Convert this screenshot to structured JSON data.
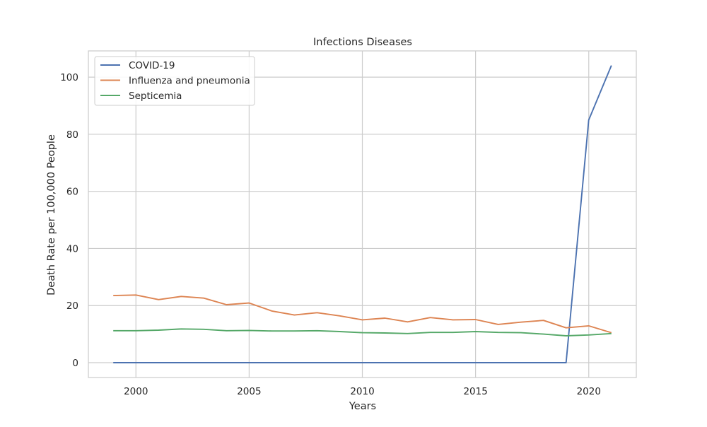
{
  "chart_data": {
    "type": "line",
    "title": "Infections Diseases",
    "xlabel": "Years",
    "ylabel": "Death Rate per 100,000 People",
    "xlim": [
      1997.9,
      2022.1
    ],
    "ylim": [
      -5.2,
      109.2
    ],
    "xticks": [
      2000,
      2005,
      2010,
      2015,
      2020
    ],
    "yticks": [
      0,
      20,
      40,
      60,
      80,
      100
    ],
    "grid": true,
    "legend_position": "top-left",
    "x": [
      1999,
      2000,
      2001,
      2002,
      2003,
      2004,
      2005,
      2006,
      2007,
      2008,
      2009,
      2010,
      2011,
      2012,
      2013,
      2014,
      2015,
      2016,
      2017,
      2018,
      2019,
      2020,
      2021
    ],
    "series": [
      {
        "name": "COVID-19",
        "color": "#4c72b0",
        "values": [
          0,
          0,
          0,
          0,
          0,
          0,
          0,
          0,
          0,
          0,
          0,
          0,
          0,
          0,
          0,
          0,
          0,
          0,
          0,
          0,
          0,
          85.0,
          104.1
        ]
      },
      {
        "name": "Influenza and pneumonia",
        "color": "#dd8452",
        "values": [
          23.5,
          23.7,
          22.1,
          23.2,
          22.6,
          20.3,
          20.9,
          18.1,
          16.7,
          17.5,
          16.4,
          15.0,
          15.6,
          14.3,
          15.8,
          15.0,
          15.1,
          13.4,
          14.2,
          14.8,
          12.2,
          12.9,
          10.5
        ]
      },
      {
        "name": "Septicemia",
        "color": "#55a868",
        "values": [
          11.2,
          11.2,
          11.4,
          11.8,
          11.7,
          11.2,
          11.3,
          11.1,
          11.1,
          11.2,
          10.9,
          10.5,
          10.4,
          10.2,
          10.6,
          10.6,
          10.9,
          10.6,
          10.5,
          10.0,
          9.4,
          9.7,
          10.2
        ]
      }
    ]
  }
}
